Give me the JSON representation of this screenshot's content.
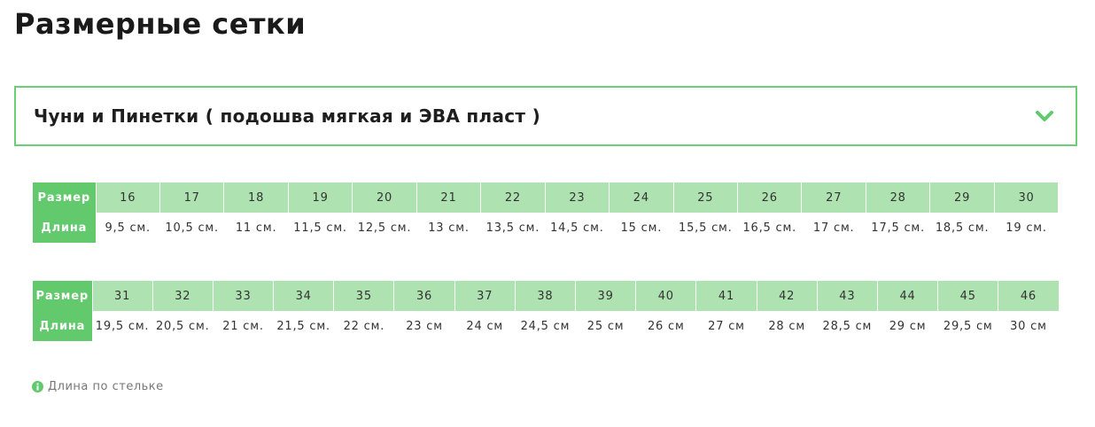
{
  "header": {
    "title": "Размерные сетки"
  },
  "accordion": {
    "title": "Чуни и Пинетки ( подошва мягкая и ЭВА пласт )"
  },
  "tables": [
    {
      "rows": [
        [
          "Размер",
          "16",
          "17",
          "18",
          "19",
          "20",
          "21",
          "22",
          "23",
          "24",
          "25",
          "26",
          "27",
          "28",
          "29",
          "30"
        ],
        [
          "Длина",
          "9,5 см.",
          "10,5 см.",
          "11 см.",
          "11,5 см.",
          "12,5 см.",
          "13 см.",
          "13,5 см.",
          "14,5 см.",
          "15 см.",
          "15,5 см.",
          "16,5 см.",
          "17 см.",
          "17,5 см.",
          "18,5 см.",
          "19 см."
        ]
      ]
    },
    {
      "rows": [
        [
          "Размер",
          "31",
          "32",
          "33",
          "34",
          "35",
          "36",
          "37",
          "38",
          "39",
          "40",
          "41",
          "42",
          "43",
          "44",
          "45",
          "46"
        ],
        [
          "Длина",
          "19,5 см.",
          "20,5 см.",
          "21 см.",
          "21,5 см.",
          "22 см.",
          "23 см",
          "24 см",
          "24,5 см",
          "25 см",
          "26 см",
          "27 см",
          "28 см",
          "28,5 см",
          "29 см",
          "29,5 см",
          "30 см"
        ]
      ]
    }
  ],
  "note": {
    "text": "Длина по стельке"
  }
}
